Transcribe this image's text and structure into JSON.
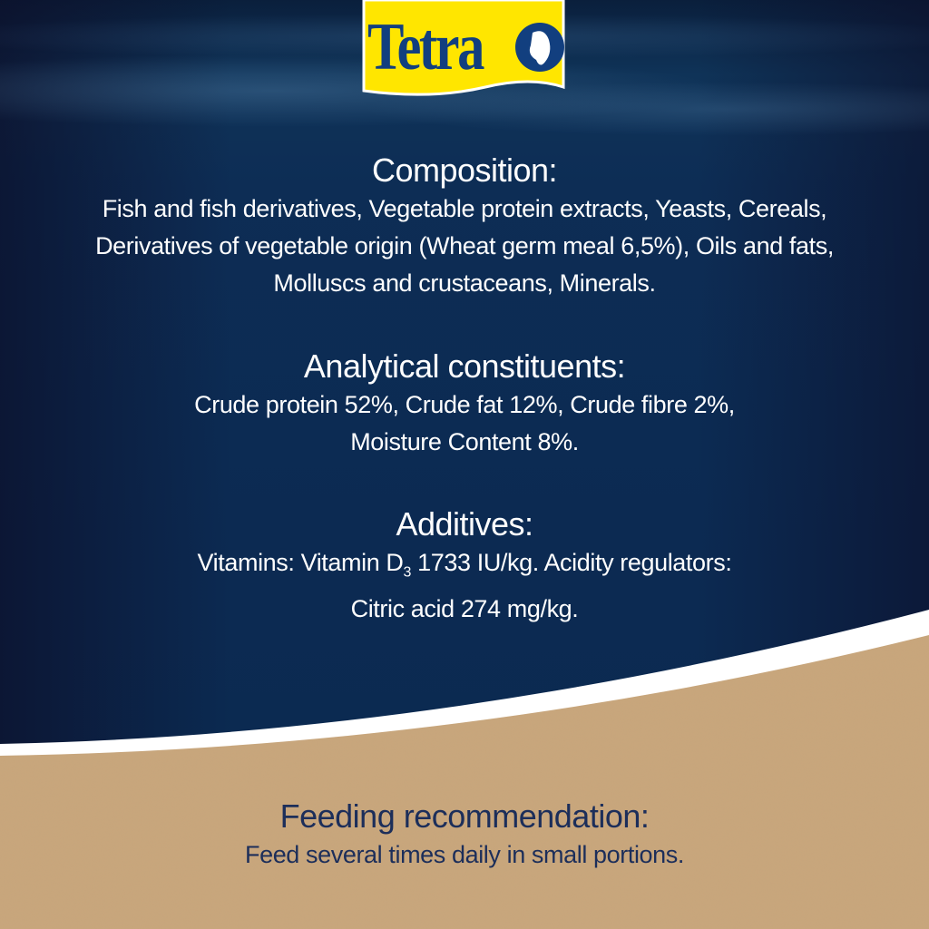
{
  "brand": {
    "logo_text": "Tetra",
    "colors": {
      "logo_bg": "#ffe600",
      "logo_blue": "#123f7f",
      "ocean": "#0c2a52",
      "sand": "#c8a57a"
    }
  },
  "composition": {
    "heading": "Composition:",
    "lines": [
      "Fish and fish derivatives, Vegetable protein extracts, Yeasts, Cereals,",
      "Derivatives of vegetable origin (Wheat germ meal 6,5%), Oils and fats,",
      "Molluscs and crustaceans, Minerals."
    ]
  },
  "analytical": {
    "heading": "Analytical constituents:",
    "lines": [
      "Crude protein 52%, Crude fat 12%, Crude fibre 2%,",
      "Moisture Content 8%."
    ]
  },
  "additives": {
    "heading": "Additives:",
    "line1_pre": "Vitamins: Vitamin D",
    "line1_sub": "3",
    "line1_post": " 1733 IU/kg. Acidity regulators:",
    "line2": "Citric acid 274 mg/kg."
  },
  "feeding": {
    "heading": "Feeding recommendation:",
    "line": "Feed several times daily in small portions."
  }
}
